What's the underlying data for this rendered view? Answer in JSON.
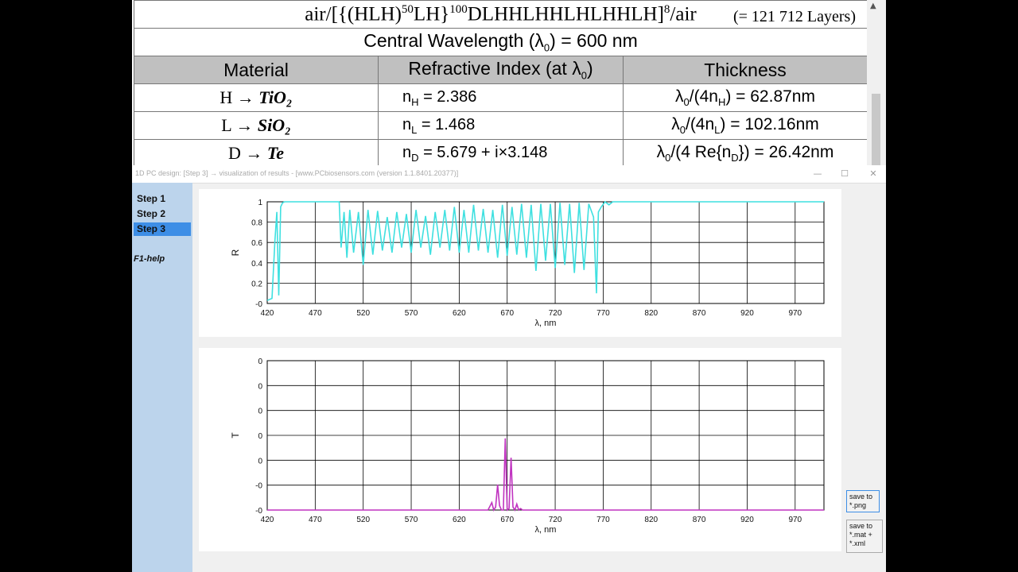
{
  "doc": {
    "formula_prefix": "air/[{(HLH)",
    "formula_exp1": "50",
    "formula_mid": "LH}",
    "formula_exp2": "100",
    "formula_seq": "DLHHLHHLHLHHLH]",
    "formula_exp3": "8",
    "formula_suffix": "/air",
    "layers": "(= 121 712 Layers)",
    "central_pre": "Central Wavelength (λ",
    "central_sub": "0",
    "central_post": ") = 600 nm",
    "headers": {
      "material": "Material",
      "index_pre": "Refractive Index (at λ",
      "index_sub": "0",
      "index_post": ")",
      "thickness": "Thickness"
    },
    "rows": [
      {
        "mat_letter": "H →",
        "mat_name": "TiO₂",
        "n_pre": "n",
        "n_sub": "H",
        "n_val": " = 2.386",
        "th_a": "λ",
        "th_sub0": "0",
        "th_b": "/(4n",
        "th_sub": "H",
        "th_c": ") = 62.87nm"
      },
      {
        "mat_letter": "L →",
        "mat_name": "SiO₂",
        "n_pre": "n",
        "n_sub": "L",
        "n_val": " = 1.468",
        "th_a": "λ",
        "th_sub0": "0",
        "th_b": "/(4n",
        "th_sub": "L",
        "th_c": ") = 102.16nm"
      },
      {
        "mat_letter": "D →",
        "mat_name": "Te",
        "n_pre": "n",
        "n_sub": "D",
        "n_val": " = 5.679 + i×3.148",
        "th_a": "λ",
        "th_sub0": "0",
        "th_b": "/(4 Re{n",
        "th_sub": "D",
        "th_c": "}) = 26.42nm"
      }
    ]
  },
  "window": {
    "title": "1D PC design: [Step 3] → visualization of results - [www.PCbiosensors.com (version 1.1.8401.20377)]",
    "min_icon": "minimize-icon",
    "max_icon": "maximize-icon",
    "close_icon": "close-icon"
  },
  "sidebar": {
    "steps": [
      "Step 1",
      "Step 2",
      "Step 3"
    ],
    "active": 2,
    "help": "F1-help"
  },
  "buttons": {
    "save_png": "save to *.png",
    "save_mat": "save to *.mat + *.xml"
  },
  "chart_data": [
    {
      "type": "line",
      "ylabel": "R",
      "xlabel": "λ, nm",
      "xlim": [
        420,
        1000
      ],
      "ylim": [
        0,
        1
      ],
      "xticks": [
        "420",
        "470",
        "520",
        "570",
        "620",
        "670",
        "720",
        "770",
        "820",
        "870",
        "920",
        "970"
      ],
      "yticks": [
        "1",
        "0.8",
        "0.6",
        "0.4",
        "0.2",
        "-0"
      ],
      "color": "#3fe0e0",
      "series": [
        {
          "x": [
            420,
            425,
            428,
            430,
            432,
            434,
            436,
            438,
            440,
            495,
            497,
            500,
            503,
            506,
            510,
            515,
            520,
            525,
            530,
            535,
            540,
            545,
            550,
            555,
            560,
            565,
            570,
            575,
            580,
            585,
            590,
            595,
            600,
            605,
            610,
            615,
            620,
            625,
            630,
            635,
            640,
            645,
            650,
            655,
            660,
            665,
            670,
            675,
            680,
            685,
            690,
            695,
            700,
            705,
            710,
            715,
            720,
            725,
            730,
            735,
            740,
            745,
            750,
            755,
            760,
            763,
            765,
            768,
            772,
            776,
            780,
            785,
            1000
          ],
          "y": [
            0.03,
            0.05,
            0.62,
            0.9,
            0.08,
            0.95,
            0.99,
            1.0,
            1.0,
            1.0,
            0.55,
            0.9,
            0.45,
            0.92,
            0.5,
            0.9,
            0.38,
            0.92,
            0.48,
            0.91,
            0.52,
            0.85,
            0.5,
            0.9,
            0.55,
            0.88,
            0.5,
            0.92,
            0.55,
            0.86,
            0.48,
            0.9,
            0.55,
            0.92,
            0.52,
            0.95,
            0.5,
            0.92,
            0.5,
            0.97,
            0.52,
            0.93,
            0.5,
            0.92,
            0.45,
            0.97,
            0.47,
            0.95,
            0.48,
            0.98,
            0.45,
            0.97,
            0.32,
            0.98,
            0.42,
            0.98,
            0.35,
            0.99,
            0.38,
            0.98,
            0.3,
            0.99,
            0.33,
            0.98,
            0.85,
            0.1,
            0.9,
            0.95,
            1.0,
            0.97,
            1.0,
            1.0,
            1.0
          ]
        }
      ]
    },
    {
      "type": "line",
      "ylabel": "T",
      "xlabel": "λ, nm",
      "xlim": [
        420,
        1000
      ],
      "ylim": [
        0,
        1
      ],
      "xticks": [
        "420",
        "470",
        "520",
        "570",
        "620",
        "670",
        "720",
        "770",
        "820",
        "870",
        "920",
        "970"
      ],
      "yticks": [
        "0",
        "0",
        "0",
        "0",
        "0",
        "-0",
        "-0"
      ],
      "color": "#c034c0",
      "series": [
        {
          "x": [
            420,
            650,
            654,
            656,
            658,
            660,
            662,
            664,
            666,
            668,
            670,
            672,
            674,
            676,
            678,
            680,
            682,
            684,
            686,
            688,
            690,
            1000
          ],
          "y": [
            0.0,
            0.0,
            0.05,
            0.0,
            0.02,
            0.17,
            0.03,
            0.0,
            0.0,
            0.48,
            0.0,
            0.01,
            0.35,
            0.02,
            0.0,
            0.04,
            0.0,
            0.01,
            0.0,
            0.0,
            0.0,
            0.0
          ]
        }
      ]
    }
  ]
}
